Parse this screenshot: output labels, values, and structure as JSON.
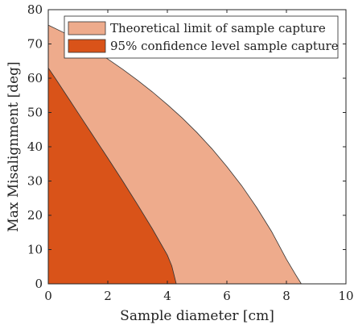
{
  "chart_data": {
    "type": "area",
    "title": "",
    "xlabel": "Sample diameter [cm]",
    "ylabel": "Max Misalignment [deg]",
    "xlim": [
      0,
      10
    ],
    "ylim": [
      0,
      80
    ],
    "xticks": [
      0,
      2,
      4,
      6,
      8,
      10
    ],
    "yticks": [
      0,
      10,
      20,
      30,
      40,
      50,
      60,
      70,
      80
    ],
    "grid": false,
    "legend_position": "top-right",
    "series": [
      {
        "name": "Theoretical limit of sample capture",
        "color": "#EEAB8C",
        "x": [
          0,
          0.5,
          1,
          1.5,
          2,
          2.5,
          3,
          3.5,
          4,
          4.5,
          5,
          5.5,
          6,
          6.5,
          7,
          7.5,
          8,
          8.3,
          8.5
        ],
        "y": [
          75.5,
          73.4,
          71.0,
          68.4,
          65.6,
          62.6,
          59.4,
          56.0,
          52.3,
          48.4,
          44.1,
          39.4,
          34.2,
          28.6,
          22.3,
          15.3,
          7.2,
          2.8,
          0
        ]
      },
      {
        "name": "95% confidence level sample capture",
        "color": "#D95319",
        "x": [
          0,
          0.25,
          0.5,
          0.75,
          1,
          1.5,
          2,
          2.5,
          3,
          3.5,
          4,
          4.15,
          4.3
        ],
        "y": [
          63.0,
          59.8,
          56.5,
          53.2,
          49.9,
          43.3,
          36.7,
          30.0,
          23.1,
          16.0,
          8.4,
          5.2,
          0
        ]
      }
    ]
  }
}
